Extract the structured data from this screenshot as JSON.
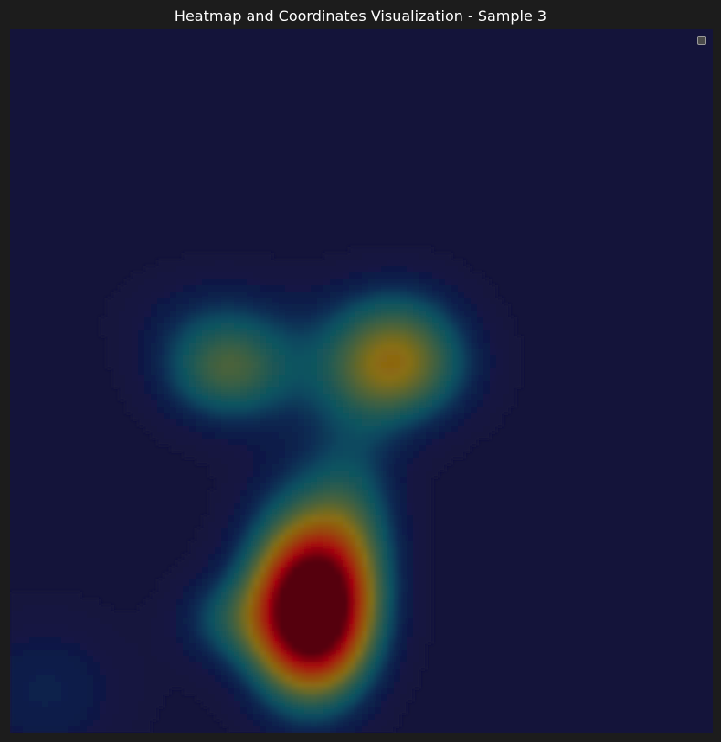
{
  "chart_data": {
    "type": "heatmap",
    "title": "Heatmap and Coordinates Visualization - Sample 3",
    "xlabel": "",
    "ylabel": "",
    "xlim": [
      0,
      1
    ],
    "ylim": [
      0,
      1
    ],
    "colormap": "jet",
    "background_color": "#14143a",
    "grid": false,
    "legend": {
      "placement": "top-right",
      "entries": []
    },
    "hotspots": [
      {
        "x": 0.31,
        "y": 0.515,
        "sx": 0.07,
        "sy": 0.055,
        "intensity": 0.42
      },
      {
        "x": 0.545,
        "y": 0.52,
        "sx": 0.075,
        "sy": 0.06,
        "intensity": 0.55
      },
      {
        "x": 0.43,
        "y": 0.165,
        "sx": 0.06,
        "sy": 0.08,
        "intensity": 0.95
      },
      {
        "x": 0.42,
        "y": 0.22,
        "sx": 0.065,
        "sy": 0.11,
        "intensity": 0.35
      },
      {
        "x": 0.49,
        "y": 0.31,
        "sx": 0.05,
        "sy": 0.1,
        "intensity": 0.22
      },
      {
        "x": 0.3,
        "y": 0.16,
        "sx": 0.05,
        "sy": 0.045,
        "intensity": 0.2
      },
      {
        "x": 0.05,
        "y": 0.06,
        "sx": 0.09,
        "sy": 0.08,
        "intensity": 0.15
      },
      {
        "x": 0.55,
        "y": 0.6,
        "sx": 0.07,
        "sy": 0.05,
        "intensity": 0.12
      },
      {
        "x": 0.3,
        "y": 0.6,
        "sx": 0.1,
        "sy": 0.05,
        "intensity": 0.1
      }
    ]
  }
}
